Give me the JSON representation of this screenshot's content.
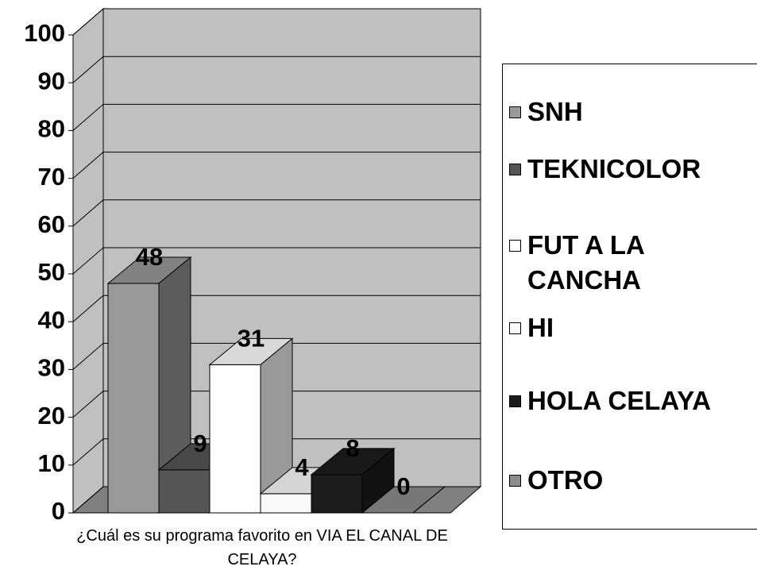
{
  "chart_data": {
    "type": "bar3d",
    "categories": [
      "¿Cuál es su programa favorito en VIA EL CANAL DE CELAYA?"
    ],
    "series": [
      {
        "name": "SNH",
        "color": "#999999",
        "values": [
          48
        ]
      },
      {
        "name": "TEKNICOLOR",
        "color": "#555555",
        "values": [
          9
        ]
      },
      {
        "name": "FUT A LA CANCHA",
        "color": "#ffffff",
        "values": [
          31
        ]
      },
      {
        "name": "HI",
        "color": "#fafafa",
        "values": [
          4
        ]
      },
      {
        "name": "HOLA CELAYA",
        "color": "#1c1c1c",
        "values": [
          8
        ]
      },
      {
        "name": "OTRO",
        "color": "#8c8c8c",
        "values": [
          0
        ]
      }
    ],
    "ylim": [
      0,
      100
    ],
    "yticks": [
      0,
      10,
      20,
      30,
      40,
      50,
      60,
      70,
      80,
      90,
      100
    ],
    "grid": true
  }
}
